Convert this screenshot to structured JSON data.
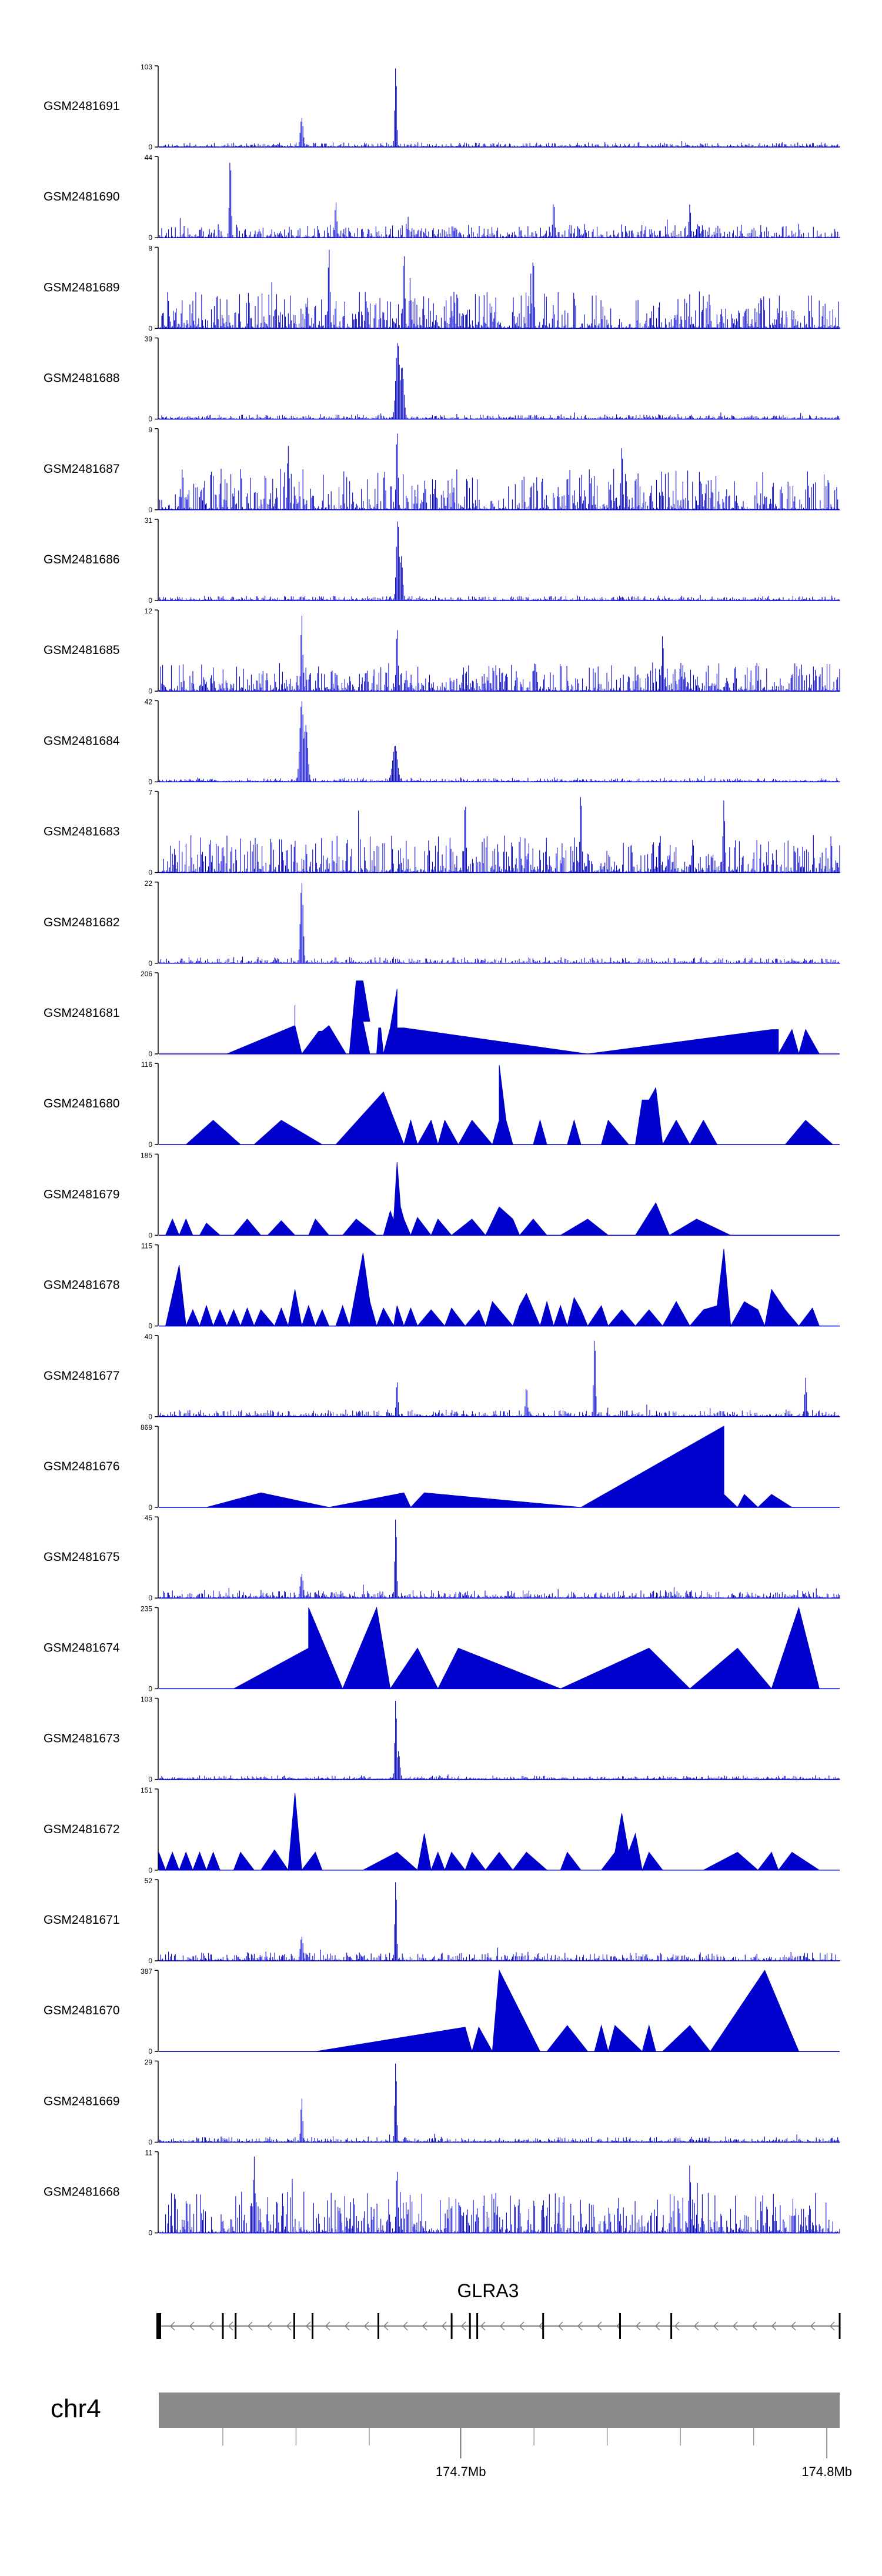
{
  "chart_data": {
    "type": "area",
    "title": "",
    "xlabel": "",
    "ylabel": "",
    "xlim": [
      174.6175,
      174.8035
    ],
    "gene": {
      "name": "GLRA3",
      "start": 174.6175,
      "end": 174.8035,
      "strand": "-",
      "exons": [
        174.6175,
        174.635,
        174.6385,
        174.6545,
        174.6595,
        174.6775,
        174.6975,
        174.7025,
        174.7045,
        174.7225,
        174.7435,
        174.7575,
        174.8035
      ]
    },
    "chromosome": {
      "name": "chr4",
      "ticks": [
        174.7,
        174.8
      ],
      "tick_labels": [
        "174.7Mb",
        "174.8Mb"
      ],
      "minor_ticks": [
        174.635,
        174.655,
        174.675,
        174.72,
        174.74,
        174.76,
        174.78
      ]
    },
    "tracks": [
      {
        "name": "GSM2481691",
        "ymax": 103,
        "ymin": 0,
        "style": "dense",
        "seed": 11,
        "noise": 0.05,
        "peaks": [
          [
            0.21,
            0.36,
            0.003
          ],
          [
            0.348,
            1.0,
            0.002
          ]
        ]
      },
      {
        "name": "GSM2481690",
        "ymax": 44,
        "ymin": 0,
        "style": "dense",
        "seed": 23,
        "noise": 0.16,
        "peaks": [
          [
            0.105,
            1.0,
            0.002
          ],
          [
            0.26,
            0.45,
            0.002
          ],
          [
            0.58,
            0.45,
            0.002
          ],
          [
            0.78,
            0.42,
            0.002
          ]
        ]
      },
      {
        "name": "GSM2481689",
        "ymax": 8,
        "ymin": 0,
        "style": "dense",
        "seed": 37,
        "noise": 0.45,
        "peaks": [
          [
            0.25,
            1.0,
            0.002
          ],
          [
            0.36,
            0.95,
            0.002
          ],
          [
            0.55,
            0.9,
            0.002
          ]
        ]
      },
      {
        "name": "GSM2481688",
        "ymax": 39,
        "ymin": 0,
        "style": "dense",
        "seed": 41,
        "noise": 0.05,
        "peaks": [
          [
            0.351,
            0.95,
            0.004
          ],
          [
            0.357,
            0.65,
            0.004
          ]
        ]
      },
      {
        "name": "GSM2481687",
        "ymax": 9,
        "ymin": 0,
        "style": "dense",
        "seed": 53,
        "noise": 0.5,
        "peaks": [
          [
            0.35,
            1.0,
            0.002
          ],
          [
            0.19,
            0.8,
            0.002
          ],
          [
            0.68,
            0.8,
            0.002
          ]
        ]
      },
      {
        "name": "GSM2481686",
        "ymax": 31,
        "ymin": 0,
        "style": "dense",
        "seed": 61,
        "noise": 0.05,
        "peaks": [
          [
            0.351,
            1.0,
            0.003
          ],
          [
            0.356,
            0.55,
            0.003
          ]
        ]
      },
      {
        "name": "GSM2481685",
        "ymax": 12,
        "ymin": 0,
        "style": "dense",
        "seed": 71,
        "noise": 0.35,
        "peaks": [
          [
            0.21,
            0.95,
            0.002
          ],
          [
            0.35,
            0.8,
            0.002
          ],
          [
            0.74,
            0.7,
            0.002
          ]
        ]
      },
      {
        "name": "GSM2481684",
        "ymax": 42,
        "ymin": 0,
        "style": "dense",
        "seed": 83,
        "noise": 0.04,
        "peaks": [
          [
            0.21,
            1.0,
            0.004
          ],
          [
            0.216,
            0.7,
            0.004
          ],
          [
            0.347,
            0.45,
            0.005
          ]
        ]
      },
      {
        "name": "GSM2481683",
        "ymax": 7,
        "ymin": 0,
        "style": "dense",
        "seed": 97,
        "noise": 0.45,
        "peaks": [
          [
            0.62,
            1.0,
            0.002
          ],
          [
            0.45,
            0.9,
            0.002
          ],
          [
            0.83,
            0.9,
            0.002
          ]
        ]
      },
      {
        "name": "GSM2481682",
        "ymax": 22,
        "ymin": 0,
        "style": "dense",
        "seed": 101,
        "noise": 0.07,
        "peaks": [
          [
            0.21,
            1.0,
            0.003
          ]
        ]
      },
      {
        "name": "GSM2481681",
        "ymax": 206,
        "ymin": 0,
        "style": "sparse",
        "x": [
          0.1,
          0.2,
          0.2,
          0.2,
          0.21,
          0.235,
          0.24,
          0.25,
          0.275,
          0.28,
          0.29,
          0.3,
          0.31,
          0.3,
          0.31,
          0.32,
          0.323,
          0.326,
          0.33,
          0.34,
          0.35,
          0.35,
          0.36,
          0.63,
          0.9,
          0.91,
          0.91,
          0.93,
          0.94,
          0.95,
          0.97
        ],
        "y": [
          0,
          0.35,
          0.6,
          0.35,
          0,
          0.28,
          0.28,
          0.35,
          0,
          0,
          0.9,
          0.9,
          0.4,
          0.4,
          0,
          0,
          0.32,
          0.32,
          0,
          0.32,
          0.8,
          0.32,
          0.32,
          0,
          0.3,
          0.3,
          0,
          0.3,
          0,
          0.3,
          0
        ]
      },
      {
        "name": "GSM2481680",
        "ymax": 116,
        "ymin": 0,
        "style": "sparse",
        "x": [
          0.04,
          0.08,
          0.12,
          0.14,
          0.18,
          0.24,
          0.26,
          0.33,
          0.36,
          0.37,
          0.38,
          0.4,
          0.41,
          0.42,
          0.44,
          0.46,
          0.49,
          0.5,
          0.5,
          0.51,
          0.52,
          0.55,
          0.56,
          0.57,
          0.6,
          0.61,
          0.62,
          0.65,
          0.66,
          0.69,
          0.7,
          0.71,
          0.72,
          0.73,
          0.74,
          0.76,
          0.78,
          0.8,
          0.82,
          0.85,
          0.87,
          0.92,
          0.95,
          0.99
        ],
        "y": [
          0,
          0.3,
          0,
          0,
          0.3,
          0,
          0,
          0.65,
          0,
          0.3,
          0,
          0.3,
          0,
          0.3,
          0,
          0.3,
          0,
          0.3,
          0.98,
          0.3,
          0,
          0,
          0.3,
          0,
          0,
          0.3,
          0,
          0,
          0.3,
          0,
          0,
          0.55,
          0.55,
          0.7,
          0,
          0.3,
          0,
          0.3,
          0,
          0,
          0,
          0,
          0.3,
          0
        ]
      },
      {
        "name": "GSM2481679",
        "ymax": 185,
        "ymin": 0,
        "style": "sparse",
        "x": [
          0.01,
          0.02,
          0.03,
          0.04,
          0.05,
          0.06,
          0.07,
          0.09,
          0.11,
          0.13,
          0.15,
          0.16,
          0.18,
          0.2,
          0.22,
          0.23,
          0.25,
          0.27,
          0.29,
          0.32,
          0.33,
          0.34,
          0.345,
          0.35,
          0.355,
          0.36,
          0.37,
          0.38,
          0.4,
          0.41,
          0.43,
          0.46,
          0.48,
          0.5,
          0.52,
          0.53,
          0.55,
          0.57,
          0.59,
          0.63,
          0.66,
          0.7,
          0.73,
          0.75,
          0.79,
          0.84,
          0.86,
          0.9
        ],
        "y": [
          0,
          0.2,
          0,
          0.2,
          0,
          0,
          0.15,
          0,
          0,
          0.2,
          0,
          0,
          0.18,
          0,
          0,
          0.2,
          0,
          0,
          0.2,
          0,
          0,
          0.3,
          0.18,
          0.9,
          0.35,
          0.2,
          0,
          0.22,
          0,
          0.2,
          0,
          0.2,
          0,
          0.35,
          0.2,
          0,
          0.2,
          0,
          0,
          0.2,
          0,
          0,
          0.4,
          0,
          0.2,
          0,
          0,
          0
        ]
      },
      {
        "name": "GSM2481678",
        "ymax": 115,
        "ymin": 0,
        "style": "sparse",
        "x": [
          0.01,
          0.03,
          0.04,
          0.05,
          0.06,
          0.07,
          0.08,
          0.09,
          0.1,
          0.11,
          0.12,
          0.13,
          0.14,
          0.15,
          0.17,
          0.18,
          0.19,
          0.2,
          0.21,
          0.22,
          0.23,
          0.24,
          0.25,
          0.26,
          0.27,
          0.28,
          0.3,
          0.31,
          0.32,
          0.33,
          0.345,
          0.35,
          0.36,
          0.37,
          0.38,
          0.4,
          0.42,
          0.43,
          0.45,
          0.47,
          0.48,
          0.49,
          0.5,
          0.52,
          0.53,
          0.54,
          0.55,
          0.56,
          0.57,
          0.58,
          0.59,
          0.6,
          0.61,
          0.62,
          0.63,
          0.65,
          0.66,
          0.68,
          0.7,
          0.72,
          0.74,
          0.76,
          0.78,
          0.8,
          0.82,
          0.83,
          0.84,
          0.86,
          0.88,
          0.89,
          0.9,
          0.92,
          0.94,
          0.96,
          0.97,
          0.99
        ],
        "y": [
          0,
          0.75,
          0,
          0.2,
          0,
          0.25,
          0,
          0.2,
          0,
          0.2,
          0,
          0.22,
          0,
          0.2,
          0,
          0.22,
          0,
          0.45,
          0,
          0.25,
          0,
          0.2,
          0,
          0,
          0.25,
          0,
          0.9,
          0.3,
          0,
          0.22,
          0,
          0.25,
          0,
          0.22,
          0,
          0.2,
          0,
          0.22,
          0,
          0.2,
          0,
          0.3,
          0.2,
          0,
          0.25,
          0.4,
          0.2,
          0,
          0.3,
          0,
          0.25,
          0,
          0.35,
          0.2,
          0,
          0.25,
          0,
          0.2,
          0,
          0.2,
          0,
          0.3,
          0,
          0.2,
          0.25,
          0.95,
          0,
          0.3,
          0.2,
          0,
          0.45,
          0.2,
          0,
          0.22,
          0,
          0
        ]
      },
      {
        "name": "GSM2481677",
        "ymax": 40,
        "ymin": 0,
        "style": "dense",
        "seed": 131,
        "noise": 0.08,
        "peaks": [
          [
            0.35,
            0.45,
            0.002
          ],
          [
            0.54,
            0.38,
            0.002
          ],
          [
            0.64,
            1.0,
            0.002
          ],
          [
            0.95,
            0.48,
            0.002
          ]
        ]
      },
      {
        "name": "GSM2481676",
        "ymax": 869,
        "ymin": 0,
        "style": "sparse",
        "x": [
          0.07,
          0.15,
          0.25,
          0.36,
          0.37,
          0.39,
          0.62,
          0.83,
          0.83,
          0.85,
          0.86,
          0.88,
          0.9,
          0.93
        ],
        "y": [
          0,
          0.18,
          0,
          0.18,
          0,
          0.18,
          0,
          1.0,
          0.16,
          0,
          0.16,
          0,
          0.16,
          0
        ]
      },
      {
        "name": "GSM2481675",
        "ymax": 45,
        "ymin": 0,
        "style": "dense",
        "seed": 149,
        "noise": 0.09,
        "peaks": [
          [
            0.348,
            1.0,
            0.002
          ],
          [
            0.21,
            0.3,
            0.003
          ]
        ]
      },
      {
        "name": "GSM2481674",
        "ymax": 235,
        "ymin": 0,
        "style": "sparse",
        "x": [
          0.11,
          0.22,
          0.22,
          0.27,
          0.32,
          0.34,
          0.38,
          0.41,
          0.44,
          0.59,
          0.72,
          0.78,
          0.85,
          0.9,
          0.94,
          0.97
        ],
        "y": [
          0,
          0.5,
          1.0,
          0,
          1.0,
          0,
          0.5,
          0,
          0.5,
          0,
          0.5,
          0,
          0.5,
          0,
          1.0,
          0
        ]
      },
      {
        "name": "GSM2481673",
        "ymax": 103,
        "ymin": 0,
        "style": "dense",
        "seed": 163,
        "noise": 0.04,
        "peaks": [
          [
            0.348,
            1.0,
            0.002
          ],
          [
            0.352,
            0.35,
            0.003
          ]
        ]
      },
      {
        "name": "GSM2481672",
        "ymax": 151,
        "ymin": 0,
        "style": "sparse",
        "x": [
          0,
          0.01,
          0.02,
          0.03,
          0.04,
          0.05,
          0.06,
          0.07,
          0.08,
          0.09,
          0.11,
          0.12,
          0.14,
          0.15,
          0.17,
          0.19,
          0.2,
          0.21,
          0.23,
          0.24,
          0.3,
          0.35,
          0.38,
          0.39,
          0.4,
          0.41,
          0.42,
          0.43,
          0.45,
          0.46,
          0.48,
          0.5,
          0.52,
          0.54,
          0.57,
          0.59,
          0.6,
          0.62,
          0.65,
          0.67,
          0.68,
          0.69,
          0.7,
          0.71,
          0.72,
          0.74,
          0.8,
          0.85,
          0.88,
          0.9,
          0.91,
          0.93,
          0.97
        ],
        "y": [
          0.22,
          0,
          0.22,
          0,
          0.22,
          0,
          0.22,
          0,
          0.22,
          0,
          0,
          0.22,
          0,
          0,
          0.25,
          0,
          0.95,
          0,
          0.22,
          0,
          0,
          0.22,
          0,
          0.45,
          0,
          0.22,
          0,
          0.22,
          0,
          0.22,
          0,
          0.22,
          0,
          0.22,
          0,
          0,
          0.22,
          0,
          0,
          0.22,
          0.7,
          0.22,
          0.45,
          0,
          0.22,
          0,
          0,
          0.22,
          0,
          0.22,
          0,
          0.22,
          0
        ]
      },
      {
        "name": "GSM2481671",
        "ymax": 52,
        "ymin": 0,
        "style": "dense",
        "seed": 173,
        "noise": 0.1,
        "peaks": [
          [
            0.348,
            1.0,
            0.002
          ],
          [
            0.21,
            0.3,
            0.003
          ]
        ]
      },
      {
        "name": "GSM2481670",
        "ymax": 387,
        "ymin": 0,
        "style": "sparse",
        "x": [
          0.23,
          0.45,
          0.45,
          0.46,
          0.47,
          0.49,
          0.5,
          0.56,
          0.57,
          0.6,
          0.63,
          0.64,
          0.65,
          0.66,
          0.67,
          0.71,
          0.72,
          0.73,
          0.74,
          0.78,
          0.81,
          0.89,
          0.94
        ],
        "y": [
          0,
          0.3,
          0.3,
          0,
          0.3,
          0,
          1.0,
          0,
          0,
          0.32,
          0,
          0,
          0.32,
          0,
          0.32,
          0,
          0.32,
          0,
          0,
          0.32,
          0,
          1.0,
          0
        ]
      },
      {
        "name": "GSM2481669",
        "ymax": 29,
        "ymin": 0,
        "style": "dense",
        "seed": 191,
        "noise": 0.06,
        "peaks": [
          [
            0.21,
            0.55,
            0.002
          ],
          [
            0.348,
            1.0,
            0.002
          ]
        ]
      },
      {
        "name": "GSM2481668",
        "ymax": 11,
        "ymin": 0,
        "style": "dense",
        "seed": 199,
        "noise": 0.5,
        "peaks": [
          [
            0.14,
            0.95,
            0.002
          ],
          [
            0.35,
            0.8,
            0.002
          ],
          [
            0.78,
            0.85,
            0.002
          ]
        ]
      }
    ],
    "colors": {
      "signal": "#0000cc",
      "axis": "#000000",
      "chrom_bar": "#8a8a8a"
    }
  }
}
